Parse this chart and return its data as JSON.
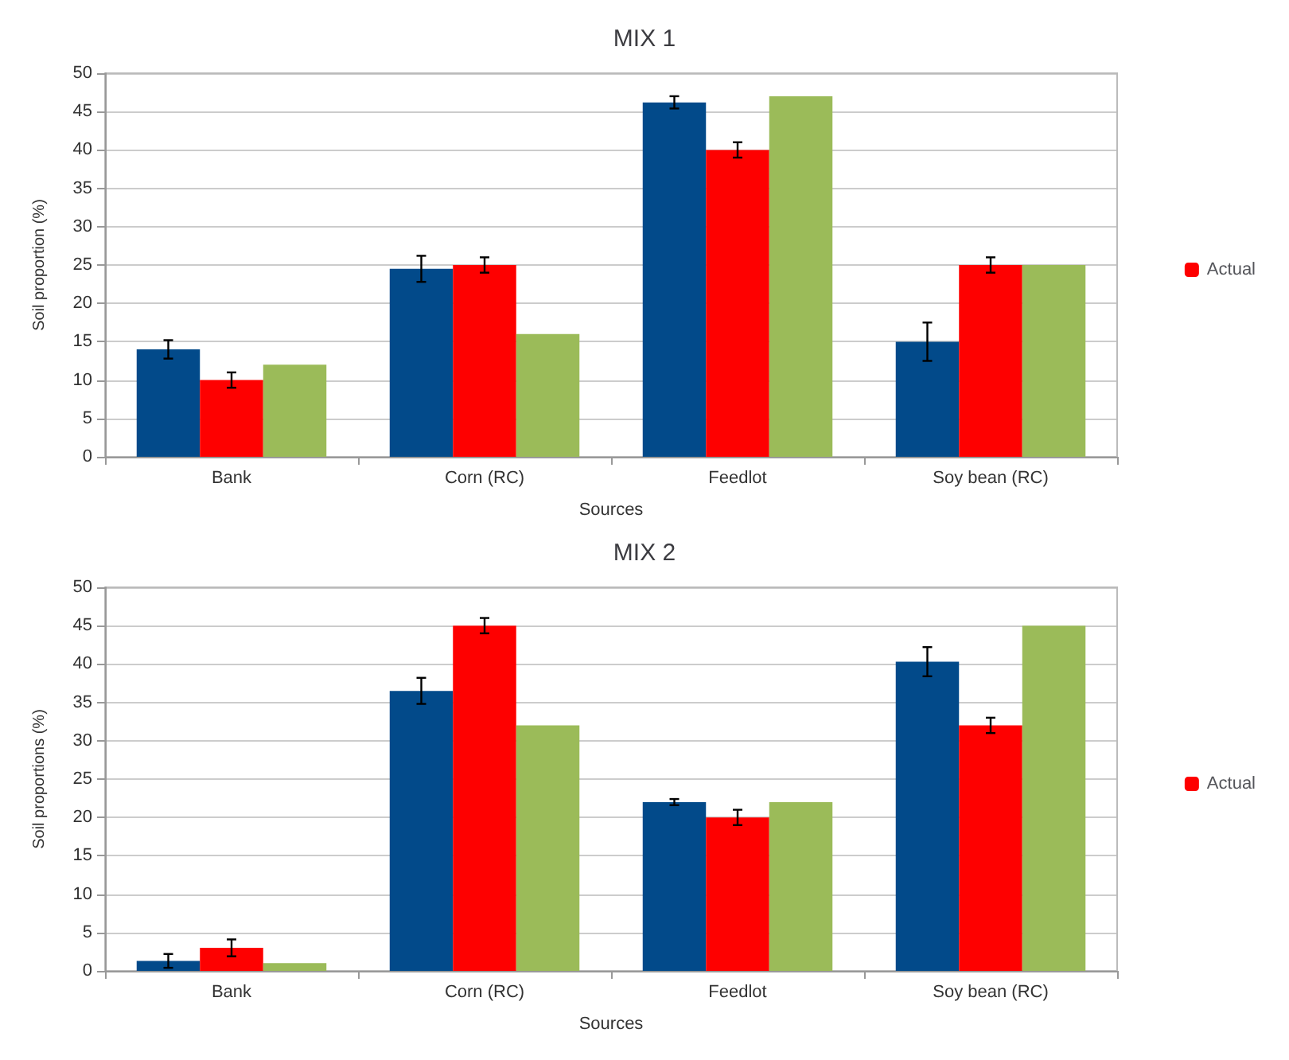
{
  "chart_data": [
    {
      "type": "bar",
      "title": "MIX 1",
      "xlabel": "Sources",
      "ylabel": "Soil proportion (%)",
      "categories": [
        "Bank",
        "Corn (RC)",
        "Feedlot",
        "Soy bean (RC)"
      ],
      "ylim": [
        0,
        50
      ],
      "yticks": [
        0,
        5,
        10,
        15,
        20,
        25,
        30,
        35,
        40,
        45,
        50
      ],
      "grid": "y",
      "legend": "right",
      "series": [
        {
          "color": "#024a8a",
          "values": [
            14,
            24.5,
            46.2,
            15
          ],
          "errors": [
            1.2,
            1.7,
            0.8,
            2.5
          ]
        },
        {
          "name": "Actual",
          "color": "#fe0000",
          "values": [
            10,
            25,
            40,
            25
          ],
          "errors": [
            1,
            1,
            1,
            1
          ]
        },
        {
          "color": "#9bbb59",
          "values": [
            12,
            16,
            47,
            25
          ]
        }
      ]
    },
    {
      "type": "bar",
      "title": "MIX 2",
      "xlabel": "Sources",
      "ylabel": "Soil proportions (%)",
      "categories": [
        "Bank",
        "Corn (RC)",
        "Feedlot",
        "Soy bean (RC)"
      ],
      "ylim": [
        0,
        50
      ],
      "yticks": [
        0,
        5,
        10,
        15,
        20,
        25,
        30,
        35,
        40,
        45,
        50
      ],
      "grid": "y",
      "legend": "right",
      "series": [
        {
          "color": "#024a8a",
          "values": [
            1.3,
            36.5,
            22,
            40.3
          ],
          "errors": [
            0.9,
            1.7,
            0.4,
            1.9
          ]
        },
        {
          "name": "Actual",
          "color": "#fe0000",
          "values": [
            3,
            45,
            20,
            32
          ],
          "errors": [
            1.1,
            1,
            1,
            1
          ]
        },
        {
          "color": "#9bbb59",
          "values": [
            1,
            32,
            22,
            45
          ]
        }
      ]
    }
  ]
}
